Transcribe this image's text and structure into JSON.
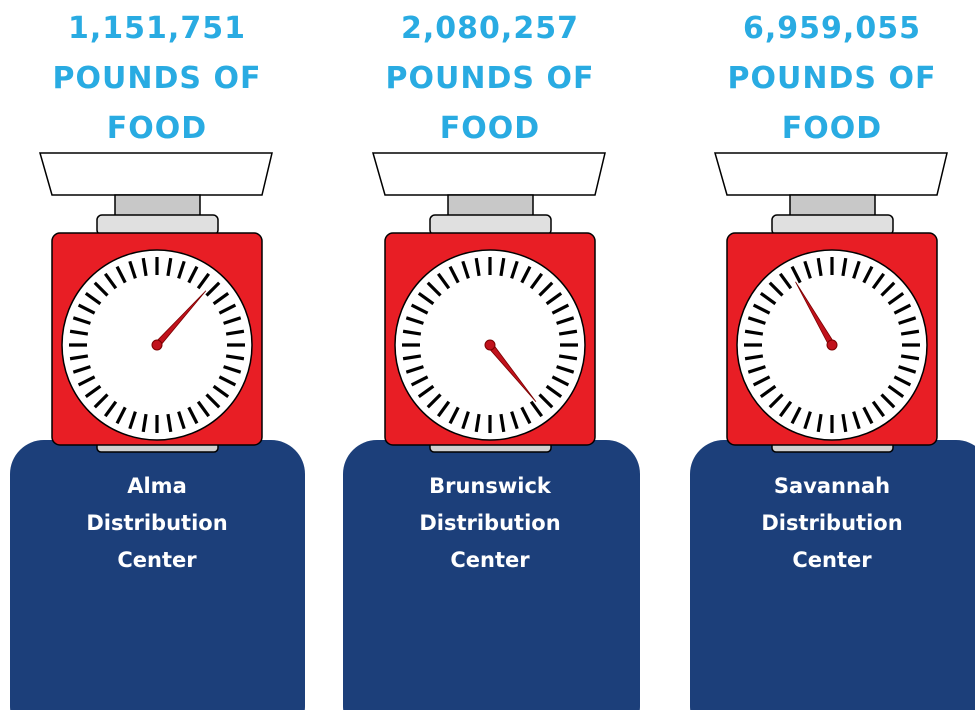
{
  "items": [
    {
      "amount": "1,151,751",
      "unit": "POUNDS OF FOOD",
      "name": "Alma Distribution Center"
    },
    {
      "amount": "2,080,257",
      "unit": "POUNDS OF FOOD",
      "name": "Brunswick Distribution Center"
    },
    {
      "amount": "6,959,055",
      "unit": "POUNDS OF FOOD",
      "name": "Savannah Distribution Center"
    }
  ]
}
